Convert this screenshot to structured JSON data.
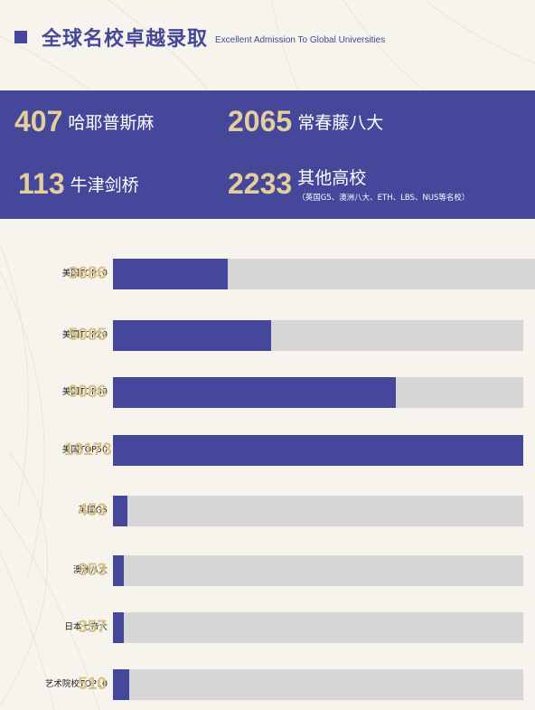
{
  "header": {
    "title": "全球名校卓越录取",
    "subtitle": "Excellent Admission To Global Universities"
  },
  "stats": [
    {
      "number": "407",
      "label": "哈耶普斯麻"
    },
    {
      "number": "2065",
      "label": "常春藤八大"
    },
    {
      "number": "113",
      "label": "牛津剑桥"
    },
    {
      "number": "2233",
      "label": "其他高校",
      "note": "（英国G5、澳洲八大、ETH、LBS、NUS等名校）"
    }
  ],
  "colors": {
    "accent": "#45479a",
    "gold": "#d8c089",
    "track": "#d7d6d6",
    "background": "#f7f4ee"
  },
  "chart_data": {
    "type": "bar",
    "orientation": "horizontal",
    "categories": [
      "美国TOP10",
      "美国TOP20",
      "美国TOP30",
      "美国TOP50",
      "英国G5",
      "澳洲八大",
      "日本七帝大",
      "艺术院校TOP10"
    ],
    "values": [
      3686,
      5085,
      9086,
      13173,
      453,
      353,
      357,
      510
    ],
    "value_labels": [
      "3686",
      "5085",
      "9086",
      "13173",
      "453",
      "353",
      "357",
      "510"
    ],
    "xlim": [
      0,
      13173
    ],
    "grid": false,
    "legend": "none"
  }
}
